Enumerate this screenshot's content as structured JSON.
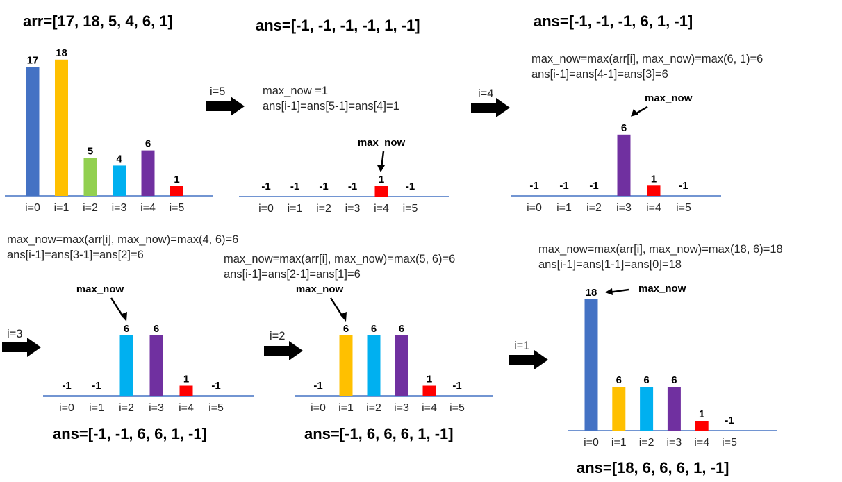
{
  "colors": {
    "blue": "#4472C4",
    "gold": "#FFC000",
    "green": "#92D050",
    "cyan": "#00B0F0",
    "purple": "#7030A0",
    "red": "#FF0000",
    "axis": "#4472C4",
    "arrow": "#000000"
  },
  "pointer_label": "max_now",
  "panels": [
    {
      "id": "p0",
      "title": "arr=[17, 18, 5, 4, 6, 1]",
      "notes": [],
      "step": "",
      "values": [
        "17",
        "18",
        "5",
        "4",
        "6",
        "1"
      ],
      "heights": [
        17,
        18,
        5,
        4,
        6,
        1
      ],
      "colors": [
        "blue",
        "gold",
        "green",
        "cyan",
        "purple",
        "red"
      ],
      "indices": [
        "i=0",
        "i=1",
        "i=2",
        "i=3",
        "i=4",
        "i=5"
      ],
      "pointer_at": null
    },
    {
      "id": "p1",
      "title": "ans=[-1, -1, -1, -1, 1, -1]",
      "notes": [
        "max_now =1",
        "ans[i-1]=ans[5-1]=ans[4]=1"
      ],
      "step": "i=5",
      "values": [
        "-1",
        "-1",
        "-1",
        "-1",
        "1",
        "-1"
      ],
      "heights": [
        0,
        0,
        0,
        0,
        1,
        0
      ],
      "colors": [
        null,
        null,
        null,
        null,
        "red",
        null
      ],
      "indices": [
        "i=0",
        "i=1",
        "i=2",
        "i=3",
        "i=4",
        "i=5"
      ],
      "pointer_at": 4
    },
    {
      "id": "p2",
      "title": "ans=[-1, -1, -1, 6, 1, -1]",
      "notes": [
        "max_now=max(arr[i], max_now)=max(6, 1)=6",
        "ans[i-1]=ans[4-1]=ans[3]=6"
      ],
      "step": "i=4",
      "values": [
        "-1",
        "-1",
        "-1",
        "6",
        "1",
        "-1"
      ],
      "heights": [
        0,
        0,
        0,
        6,
        1,
        0
      ],
      "colors": [
        null,
        null,
        null,
        "purple",
        "red",
        null
      ],
      "indices": [
        "i=0",
        "i=1",
        "i=2",
        "i=3",
        "i=4",
        "i=5"
      ],
      "pointer_at": 3
    },
    {
      "id": "p3",
      "title": "ans=[-1, -1, 6, 6, 1, -1]",
      "notes": [
        "max_now=max(arr[i], max_now)=max(4, 6)=6",
        "ans[i-1]=ans[3-1]=ans[2]=6"
      ],
      "step": "i=3",
      "values": [
        "-1",
        "-1",
        "6",
        "6",
        "1",
        "-1"
      ],
      "heights": [
        0,
        0,
        6,
        6,
        1,
        0
      ],
      "colors": [
        null,
        null,
        "cyan",
        "purple",
        "red",
        null
      ],
      "indices": [
        "i=0",
        "i=1",
        "i=2",
        "i=3",
        "i=4",
        "i=5"
      ],
      "pointer_at": 2
    },
    {
      "id": "p4",
      "title": "ans=[-1, 6, 6, 6, 1, -1]",
      "notes": [
        "max_now=max(arr[i], max_now)=max(5, 6)=6",
        "ans[i-1]=ans[2-1]=ans[1]=6"
      ],
      "step": "i=2",
      "values": [
        "-1",
        "6",
        "6",
        "6",
        "1",
        "-1"
      ],
      "heights": [
        0,
        6,
        6,
        6,
        1,
        0
      ],
      "colors": [
        null,
        "gold",
        "cyan",
        "purple",
        "red",
        null
      ],
      "indices": [
        "i=0",
        "i=1",
        "i=2",
        "i=3",
        "i=4",
        "i=5"
      ],
      "pointer_at": 1
    },
    {
      "id": "p5",
      "title": "ans=[18, 6, 6, 6, 1, -1]",
      "notes": [
        "max_now=max(arr[i], max_now)=max(18, 6)=18",
        "ans[i-1]=ans[1-1]=ans[0]=18"
      ],
      "step": "i=1",
      "values": [
        "18",
        "6",
        "6",
        "6",
        "1",
        "-1"
      ],
      "heights": [
        18,
        6,
        6,
        6,
        1,
        0
      ],
      "colors": [
        "blue",
        "gold",
        "cyan",
        "purple",
        "red",
        null
      ],
      "indices": [
        "i=0",
        "i=1",
        "i=2",
        "i=3",
        "i=4",
        "i=5"
      ],
      "pointer_at": 0
    }
  ]
}
